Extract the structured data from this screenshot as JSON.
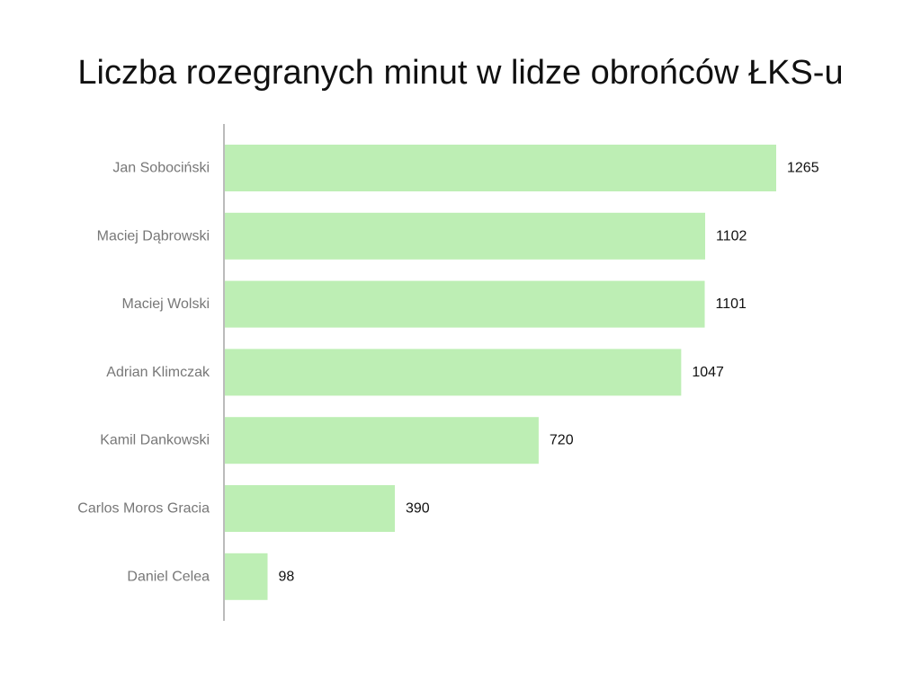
{
  "chart_data": {
    "type": "bar",
    "orientation": "horizontal",
    "title": "Liczba rozegranych minut w lidze obrońców ŁKS-u",
    "categories": [
      "Jan Sobociński",
      "Maciej Dąbrowski",
      "Maciej Wolski",
      "Adrian Klimczak",
      "Kamil Dankowski",
      "Carlos Moros Gracia",
      "Daniel Celea"
    ],
    "values": [
      1265,
      1102,
      1101,
      1047,
      720,
      390,
      98
    ],
    "xlim": [
      0,
      1265
    ],
    "grid": false,
    "legend": "none",
    "bar_color": "#bdeeb4",
    "axis_color": "#bbbbbb"
  }
}
